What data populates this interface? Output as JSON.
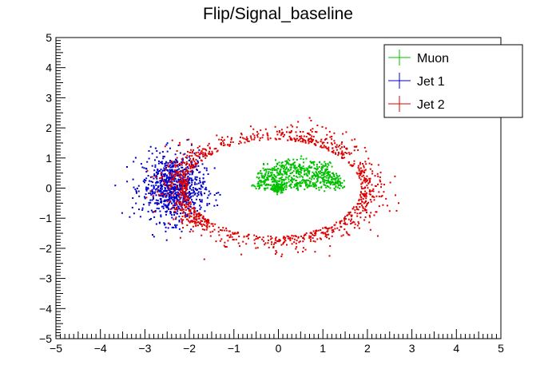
{
  "chart_data": {
    "type": "scatter",
    "title": "Flip/Signal_baseline",
    "xlabel": "",
    "ylabel": "",
    "xlim": [
      -5,
      5
    ],
    "ylim": [
      -5,
      5
    ],
    "xticks": [
      -5,
      -4,
      -3,
      -2,
      -1,
      0,
      1,
      2,
      3,
      4,
      5
    ],
    "yticks": [
      -5,
      -4,
      -3,
      -2,
      -1,
      0,
      1,
      2,
      3,
      4,
      5
    ],
    "grid": false,
    "legend_position": "top-right",
    "series": [
      {
        "name": "Muon",
        "color": "#00c000",
        "shape": "half-disk",
        "center": [
          0.45,
          0.1
        ],
        "radius_x": 1.05,
        "radius_y": 1.0,
        "dense_cluster": [
          0.0,
          0.0
        ],
        "count": 700
      },
      {
        "name": "Jet 1",
        "color": "#0000cc",
        "shape": "cluster",
        "center": [
          -2.35,
          0.0
        ],
        "spread_x": 0.35,
        "spread_y": 0.55,
        "count": 850
      },
      {
        "name": "Jet 2",
        "color": "#dd0000",
        "shape": "ring",
        "center": [
          -0.1,
          0.0
        ],
        "radius_x": 1.95,
        "radius_y": 1.6,
        "count": 1150
      }
    ]
  }
}
